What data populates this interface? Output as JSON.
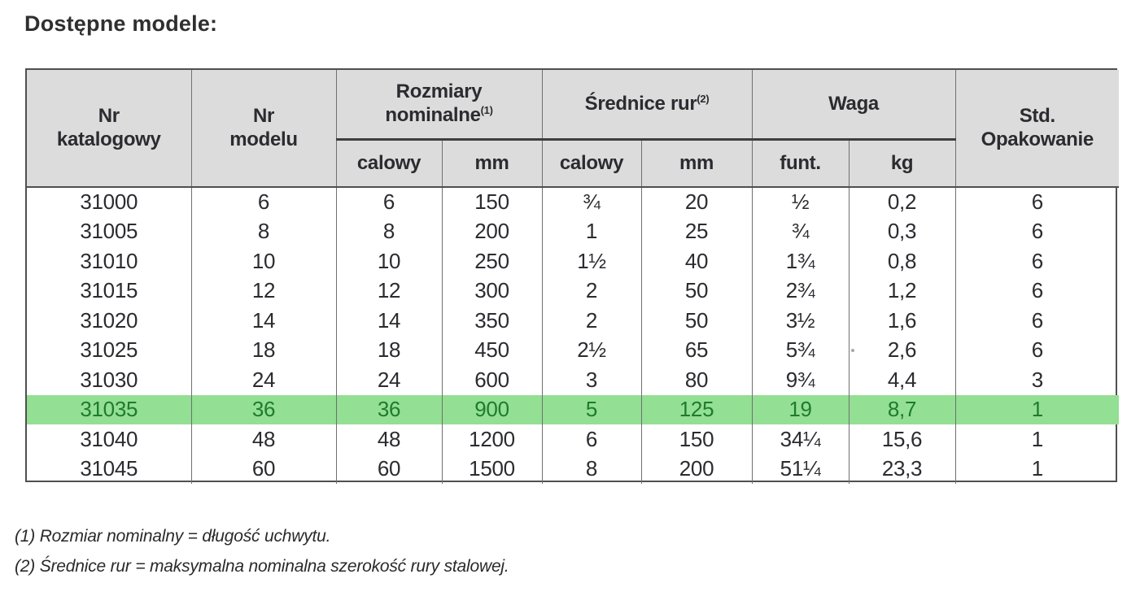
{
  "page": {
    "title": "Dostępne modele:"
  },
  "colors": {
    "title-text": "#2f2f2f",
    "header-bg": "#dcdcdc",
    "highlight-bg": "#93df93",
    "highlight-text": "#1e7b2e",
    "table-text": "#2b2b30",
    "border-outer": "#4f4f4f",
    "border-inner": "#707070"
  },
  "table": {
    "columns": {
      "catalog": "Nr\nkatalogowy",
      "model": "Nr\nmodelu",
      "std_pack": "Std.\nOpakowanie"
    },
    "groups": [
      {
        "label": "Rozmiary\nnominalne",
        "sup": "(1)"
      },
      {
        "label": "Średnice rur",
        "sup": "(2)"
      },
      {
        "label": "Waga",
        "sup": ""
      }
    ],
    "subheaders": [
      "calowy",
      "mm",
      "calowy",
      "mm",
      "funt.",
      "kg"
    ],
    "rows": [
      [
        "31000",
        "6",
        "6",
        "150",
        "¾",
        "20",
        "½",
        "0,2",
        "6"
      ],
      [
        "31005",
        "8",
        "8",
        "200",
        "1",
        "25",
        "¾",
        "0,3",
        "6"
      ],
      [
        "31010",
        "10",
        "10",
        "250",
        "1½",
        "40",
        "1¾",
        "0,8",
        "6"
      ],
      [
        "31015",
        "12",
        "12",
        "300",
        "2",
        "50",
        "2¾",
        "1,2",
        "6"
      ],
      [
        "31020",
        "14",
        "14",
        "350",
        "2",
        "50",
        "3½",
        "1,6",
        "6"
      ],
      [
        "31025",
        "18",
        "18",
        "450",
        "2½",
        "65",
        "5¾",
        "2,6",
        "6"
      ],
      [
        "31030",
        "24",
        "24",
        "600",
        "3",
        "80",
        "9¾",
        "4,4",
        "3"
      ],
      [
        "31035",
        "36",
        "36",
        "900",
        "5",
        "125",
        "19",
        "8,7",
        "1"
      ],
      [
        "31040",
        "48",
        "48",
        "1200",
        "6",
        "150",
        "34¼",
        "15,6",
        "1"
      ],
      [
        "31045",
        "60",
        "60",
        "1500",
        "8",
        "200",
        "51¼",
        "23,3",
        "1"
      ]
    ],
    "highlighted_row_index": 7
  },
  "footnotes": [
    "(1) Rozmiar nominalny = długość uchwytu.",
    "(2) Średnice rur = maksymalna nominalna szerokość rury stalowej."
  ]
}
